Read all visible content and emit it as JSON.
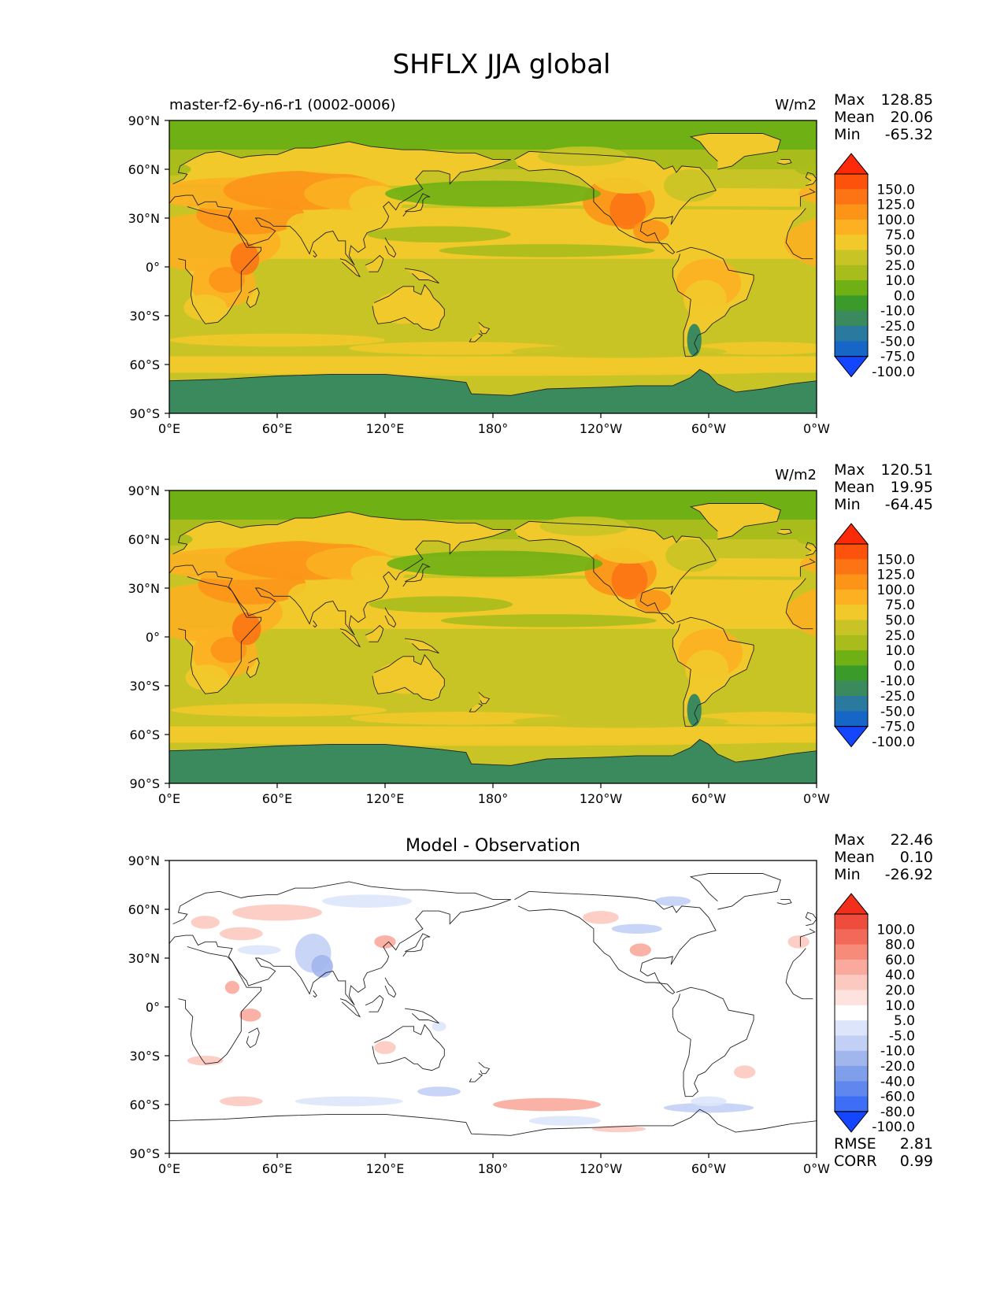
{
  "figure": {
    "title": "SHFLX JJA global"
  },
  "lat_ticks": [
    "90°N",
    "60°N",
    "30°N",
    "0°",
    "30°S",
    "60°S",
    "90°S"
  ],
  "lon_ticks": [
    "0°E",
    "60°E",
    "120°E",
    "180°",
    "120°W",
    "60°W",
    "0°W"
  ],
  "colors": {
    "abs_levels": [
      "#1445ff",
      "#1666c8",
      "#2a7aa0",
      "#3a8a5e",
      "#3a9a2a",
      "#6fb014",
      "#a8bd1c",
      "#c9c426",
      "#f2c92a",
      "#fcb022",
      "#fc9418",
      "#fc7414",
      "#fc520c",
      "#fc2a08"
    ],
    "diff_levels": [
      "#1445ff",
      "#3d6ef5",
      "#5f87ee",
      "#809fea",
      "#a2b6ee",
      "#c3d0f5",
      "#dde5fb",
      "#ffffff",
      "#fde2de",
      "#fcc9c0",
      "#f9aa9d",
      "#f68b7a",
      "#f2695a",
      "#ee4c3c",
      "#f22f1a"
    ]
  },
  "panels": [
    {
      "id": "test",
      "title": "",
      "left_label": "master-f2-6y-n6-r1 (0002-0006)",
      "units": "W/m2",
      "stats": [
        {
          "label": "Max",
          "value": "128.85"
        },
        {
          "label": "Mean",
          "value": "20.06"
        },
        {
          "label": "Min",
          "value": "-65.32"
        }
      ],
      "colorbar_ticks": [
        "150.0",
        "125.0",
        "100.0",
        "75.0",
        "50.0",
        "25.0",
        "10.0",
        "0.0",
        "-10.0",
        "-25.0",
        "-50.0",
        "-75.0",
        "-100.0"
      ],
      "extra_stats": []
    },
    {
      "id": "reference",
      "title": "",
      "left_label": "",
      "units": "W/m2",
      "stats": [
        {
          "label": "Max",
          "value": "120.51"
        },
        {
          "label": "Mean",
          "value": "19.95"
        },
        {
          "label": "Min",
          "value": "-64.45"
        }
      ],
      "colorbar_ticks": [
        "150.0",
        "125.0",
        "100.0",
        "75.0",
        "50.0",
        "25.0",
        "10.0",
        "0.0",
        "-10.0",
        "-25.0",
        "-50.0",
        "-75.0",
        "-100.0"
      ],
      "extra_stats": []
    },
    {
      "id": "difference",
      "title": "Model - Observation",
      "left_label": "",
      "units": "",
      "stats": [
        {
          "label": "Max",
          "value": "22.46"
        },
        {
          "label": "Mean",
          "value": "0.10"
        },
        {
          "label": "Min",
          "value": "-26.92"
        }
      ],
      "colorbar_ticks": [
        "100.0",
        "80.0",
        "60.0",
        "40.0",
        "20.0",
        "10.0",
        "5.0",
        "-5.0",
        "-10.0",
        "-20.0",
        "-40.0",
        "-60.0",
        "-80.0",
        "-100.0"
      ],
      "extra_stats": [
        {
          "label": "RMSE",
          "value": "2.81"
        },
        {
          "label": "CORR",
          "value": "0.99"
        }
      ]
    }
  ],
  "chart_data": {
    "type": "heatmap",
    "title": "SHFLX JJA global",
    "xlim": [
      0,
      360
    ],
    "ylim": [
      -90,
      90
    ],
    "panels": [
      {
        "name": "master-f2-6y-n6-r1 (0002-0006)",
        "units": "W/m2",
        "max": 128.85,
        "mean": 20.06,
        "min": -65.32,
        "levels": [
          -100,
          -75,
          -50,
          -25,
          -10,
          0,
          10,
          25,
          50,
          75,
          100,
          125,
          150
        ]
      },
      {
        "units": "W/m2",
        "max": 120.51,
        "mean": 19.95,
        "min": -64.45,
        "levels": [
          -100,
          -75,
          -50,
          -25,
          -10,
          0,
          10,
          25,
          50,
          75,
          100,
          125,
          150
        ]
      },
      {
        "name": "Model - Observation",
        "max": 22.46,
        "mean": 0.1,
        "min": -26.92,
        "rmse": 2.81,
        "corr": 0.99,
        "levels": [
          -100,
          -80,
          -60,
          -40,
          -20,
          -10,
          -5,
          5,
          10,
          20,
          40,
          60,
          80,
          100
        ]
      }
    ]
  }
}
